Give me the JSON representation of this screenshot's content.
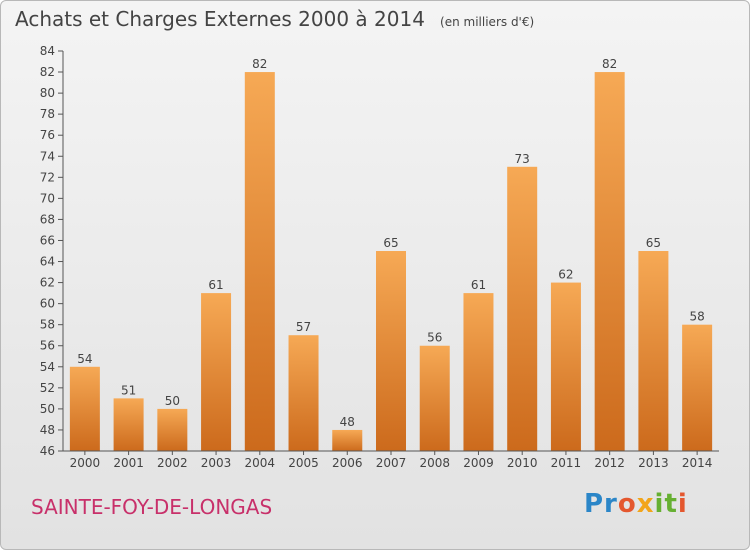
{
  "title": "Achats et Charges Externes 2000 à 2014",
  "unit": "(en milliers d'€)",
  "commune": "SAINTE-FOY-DE-LONGAS",
  "logo_text": "Proxiti",
  "colors": {
    "bar_light": "#f6a955",
    "bar_dark": "#cc6a1c",
    "commune": "#c8306a",
    "axis_text": "#444444"
  },
  "chart_data": {
    "type": "bar",
    "title": "Achats et Charges Externes 2000 à 2014",
    "categories": [
      "2000",
      "2001",
      "2002",
      "2003",
      "2004",
      "2005",
      "2006",
      "2007",
      "2008",
      "2009",
      "2010",
      "2011",
      "2012",
      "2013",
      "2014"
    ],
    "values": [
      54,
      51,
      50,
      61,
      82,
      57,
      48,
      65,
      56,
      61,
      73,
      62,
      82,
      65,
      58
    ],
    "ylim": [
      46,
      84
    ],
    "yticks": [
      46,
      48,
      50,
      52,
      54,
      56,
      58,
      60,
      62,
      64,
      66,
      68,
      70,
      72,
      74,
      76,
      78,
      80,
      82,
      84
    ],
    "grid": false,
    "xlabel": "",
    "ylabel": ""
  }
}
